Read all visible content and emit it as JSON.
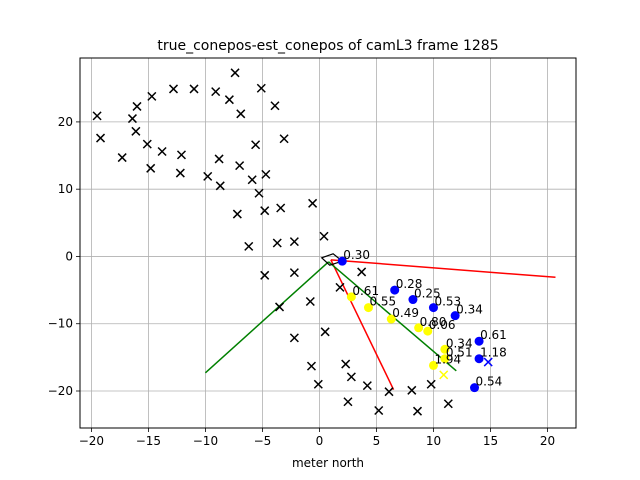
{
  "chart_data": {
    "type": "scatter",
    "title": "true_conepos-est_conepos of camL3 frame 1285",
    "xlabel": "meter north",
    "ylabel": "",
    "xlim": [
      -21,
      22.5
    ],
    "ylim": [
      -25.5,
      29.5
    ],
    "xticks": [
      -20,
      -15,
      -10,
      -5,
      0,
      5,
      10,
      15,
      20
    ],
    "yticks": [
      -20,
      -10,
      0,
      10,
      20
    ],
    "grid": true,
    "true_cones_black_x": [
      [
        -19.5,
        20.9
      ],
      [
        -19.2,
        17.6
      ],
      [
        -17.3,
        14.7
      ],
      [
        -16.4,
        20.5
      ],
      [
        -16.0,
        22.3
      ],
      [
        -16.1,
        18.6
      ],
      [
        -15.1,
        16.7
      ],
      [
        -14.7,
        23.8
      ],
      [
        -14.8,
        13.1
      ],
      [
        -13.8,
        15.6
      ],
      [
        -12.8,
        24.9
      ],
      [
        -12.1,
        15.1
      ],
      [
        -12.2,
        12.4
      ],
      [
        -11.0,
        24.9
      ],
      [
        -9.8,
        11.9
      ],
      [
        -9.1,
        24.5
      ],
      [
        -8.8,
        14.5
      ],
      [
        -8.7,
        10.5
      ],
      [
        -7.9,
        23.3
      ],
      [
        -7.4,
        27.3
      ],
      [
        -7.2,
        6.3
      ],
      [
        -7.0,
        13.5
      ],
      [
        -6.9,
        21.2
      ],
      [
        -6.2,
        1.5
      ],
      [
        -5.9,
        11.4
      ],
      [
        -5.6,
        16.6
      ],
      [
        -5.3,
        9.4
      ],
      [
        -5.1,
        25.0
      ],
      [
        -4.8,
        6.8
      ],
      [
        -4.7,
        12.2
      ],
      [
        -4.8,
        -2.8
      ],
      [
        -3.9,
        22.4
      ],
      [
        -3.7,
        2.0
      ],
      [
        -3.5,
        -7.5
      ],
      [
        -3.4,
        7.2
      ],
      [
        -3.1,
        17.5
      ],
      [
        -2.2,
        2.2
      ],
      [
        -2.2,
        -2.4
      ],
      [
        -2.2,
        -12.1
      ],
      [
        -0.8,
        -6.7
      ],
      [
        -0.6,
        7.9
      ],
      [
        -0.7,
        -16.3
      ],
      [
        0.4,
        3.0
      ],
      [
        0.5,
        -11.2
      ],
      [
        -0.1,
        -19.0
      ],
      [
        1.8,
        -4.6
      ],
      [
        2.3,
        -16.0
      ],
      [
        2.5,
        -21.6
      ],
      [
        2.8,
        -17.9
      ],
      [
        3.7,
        -2.3
      ],
      [
        4.2,
        -19.2
      ],
      [
        5.2,
        -22.9
      ],
      [
        6.1,
        -20.1
      ],
      [
        8.1,
        -19.9
      ],
      [
        8.6,
        -23.0
      ],
      [
        9.8,
        -19.0
      ],
      [
        11.3,
        -21.9
      ]
    ],
    "estimated_cones_blue_x": [
      [
        14.8,
        -15.7
      ]
    ],
    "estimated_cones_yellow_x": [
      [
        10.9,
        -17.6
      ]
    ],
    "detected_cones_blue": [
      {
        "x": 2.0,
        "y": -0.7,
        "label": "0.30"
      },
      {
        "x": 6.6,
        "y": -5.0,
        "label": "0.28"
      },
      {
        "x": 8.2,
        "y": -6.4,
        "label": "0.25"
      },
      {
        "x": 10.0,
        "y": -7.6,
        "label": "0.53"
      },
      {
        "x": 11.9,
        "y": -8.8,
        "label": "0.34"
      },
      {
        "x": 14.0,
        "y": -12.6,
        "label": "0.61"
      },
      {
        "x": 14.0,
        "y": -15.2,
        "label": "1.18"
      },
      {
        "x": 13.6,
        "y": -19.5,
        "label": "0.54"
      }
    ],
    "detected_cones_yellow": [
      {
        "x": 2.8,
        "y": -6.0,
        "label": "0.61"
      },
      {
        "x": 4.3,
        "y": -7.6,
        "label": "0.55"
      },
      {
        "x": 6.3,
        "y": -9.3,
        "label": "0.49"
      },
      {
        "x": 8.7,
        "y": -10.6,
        "label": "0.80"
      },
      {
        "x": 9.5,
        "y": -11.1,
        "label": "0.06"
      },
      {
        "x": 11.0,
        "y": -13.8,
        "label": "0.34"
      },
      {
        "x": 11.0,
        "y": -15.2,
        "label": "0.51"
      },
      {
        "x": 10.0,
        "y": -16.2,
        "label": "1.94"
      }
    ],
    "camera_fov_lines": [
      {
        "color": "#ff0000",
        "points": [
          [
            1.0,
            -0.5
          ],
          [
            20.7,
            -3.1
          ]
        ]
      },
      {
        "color": "#ff0000",
        "points": [
          [
            1.0,
            -0.5
          ],
          [
            6.5,
            -19.8
          ]
        ]
      },
      {
        "color": "#008000",
        "points": [
          [
            0.8,
            -0.8
          ],
          [
            -10.0,
            -17.3
          ]
        ]
      },
      {
        "color": "#008000",
        "points": [
          [
            0.8,
            -0.8
          ],
          [
            12.0,
            -17.0
          ]
        ]
      }
    ],
    "camera_marker": [
      [
        0.2,
        -0.2
      ],
      [
        1.2,
        0.4
      ],
      [
        2.0,
        -0.7
      ],
      [
        0.9,
        -1.3
      ]
    ],
    "colors": {
      "true_cone": "#000000",
      "blue_cone": "#0000ff",
      "yellow_cone": "#ffff00",
      "grid": "#b0b0b0"
    }
  }
}
